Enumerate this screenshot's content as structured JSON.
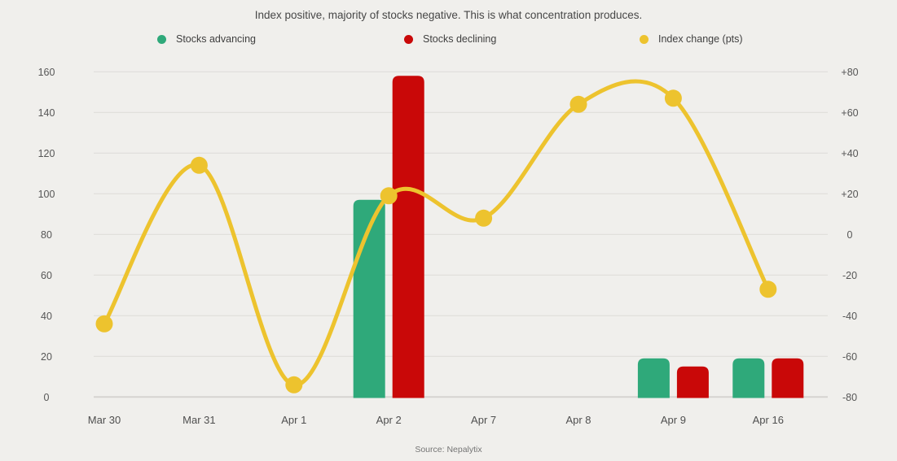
{
  "title": "Index positive, majority of stocks negative. This is what concentration produces.",
  "legend": {
    "items": [
      {
        "label": "Stocks advancing",
        "color": "#2fa97a"
      },
      {
        "label": "Stocks declining",
        "color": "#c90808"
      },
      {
        "label": "Index change (pts)",
        "color": "#edc32e"
      }
    ]
  },
  "source": "Source: Nepalytix",
  "chart_data": {
    "type": "bar",
    "subtype": "bar+line combo, dual axis",
    "title": "Index positive, majority of stocks negative. This is what concentration produces.",
    "categories": [
      "Mar 30",
      "Mar 31",
      "Apr 1",
      "Apr 2",
      "Apr 7",
      "Apr 8",
      "Apr 9",
      "Apr 16"
    ],
    "series": [
      {
        "name": "Stocks advancing",
        "type": "bar",
        "axis": "left",
        "color": "#2fa97a",
        "values": [
          null,
          null,
          null,
          97,
          null,
          null,
          19,
          19
        ]
      },
      {
        "name": "Stocks declining",
        "type": "bar",
        "axis": "left",
        "color": "#c90808",
        "values": [
          null,
          null,
          null,
          158,
          null,
          null,
          15,
          19
        ]
      },
      {
        "name": "Index change (pts)",
        "type": "line",
        "axis": "right",
        "color": "#edc32e",
        "values": [
          -44,
          34,
          -74,
          19,
          8,
          64,
          67,
          -27
        ]
      }
    ],
    "left_axis": {
      "min": 0,
      "max": 160,
      "step": 20,
      "ticks_top_to_bottom": [
        "160",
        "140",
        "120",
        "100",
        "80",
        "60",
        "40",
        "20",
        "0"
      ]
    },
    "right_axis": {
      "min": -80,
      "max": 80,
      "step": 20,
      "ticks_top_to_bottom": [
        "+80",
        "+60",
        "+40",
        "+20",
        "0",
        "-20",
        "-40",
        "-60",
        "-80"
      ]
    },
    "grid": true,
    "legend_position": "top",
    "colors": {
      "background": "#f0efec",
      "gridline": "#dfdeda",
      "baseline": "#d5d4d0",
      "axis_text": "#565656",
      "category_text": "#4f4f4f"
    }
  }
}
